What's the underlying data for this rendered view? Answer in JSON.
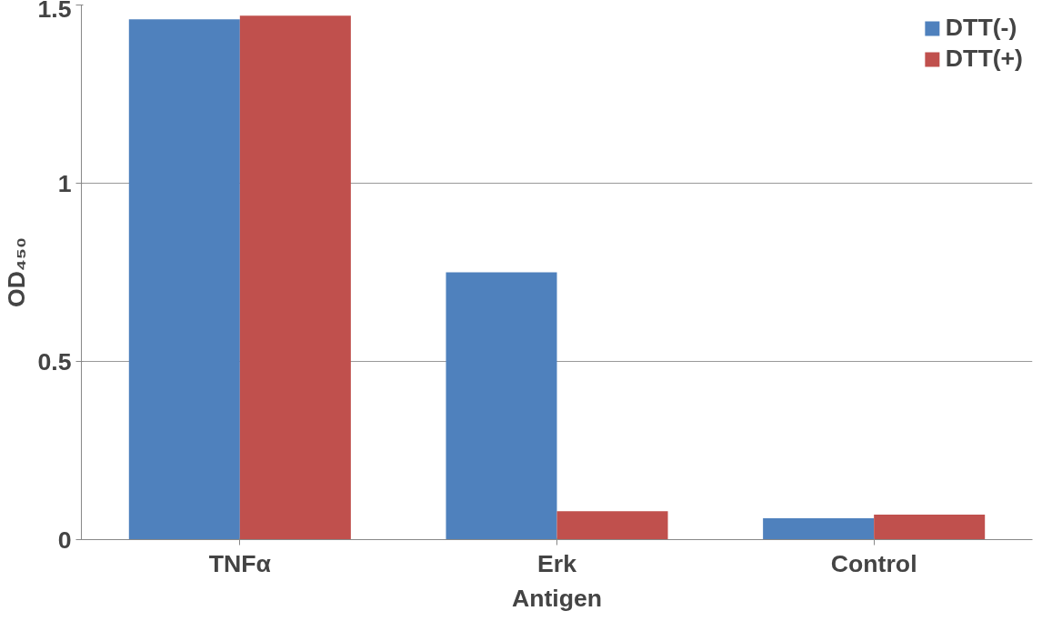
{
  "chart_data": {
    "type": "bar",
    "xlabel": "Antigen",
    "ylabel": "OD₄₅₀",
    "categories": [
      "TNFα",
      "Erk",
      "Control"
    ],
    "series": [
      {
        "name": "DTT(-)",
        "color": "#4f81bd",
        "values": [
          1.46,
          0.75,
          0.06
        ]
      },
      {
        "name": "DTT(+)",
        "color": "#c0504d",
        "values": [
          1.47,
          0.08,
          0.07
        ]
      }
    ],
    "ylim": [
      0,
      1.5
    ],
    "yticks": [
      0,
      0.5,
      1,
      1.5
    ],
    "grid": "y",
    "legend": "top right"
  }
}
